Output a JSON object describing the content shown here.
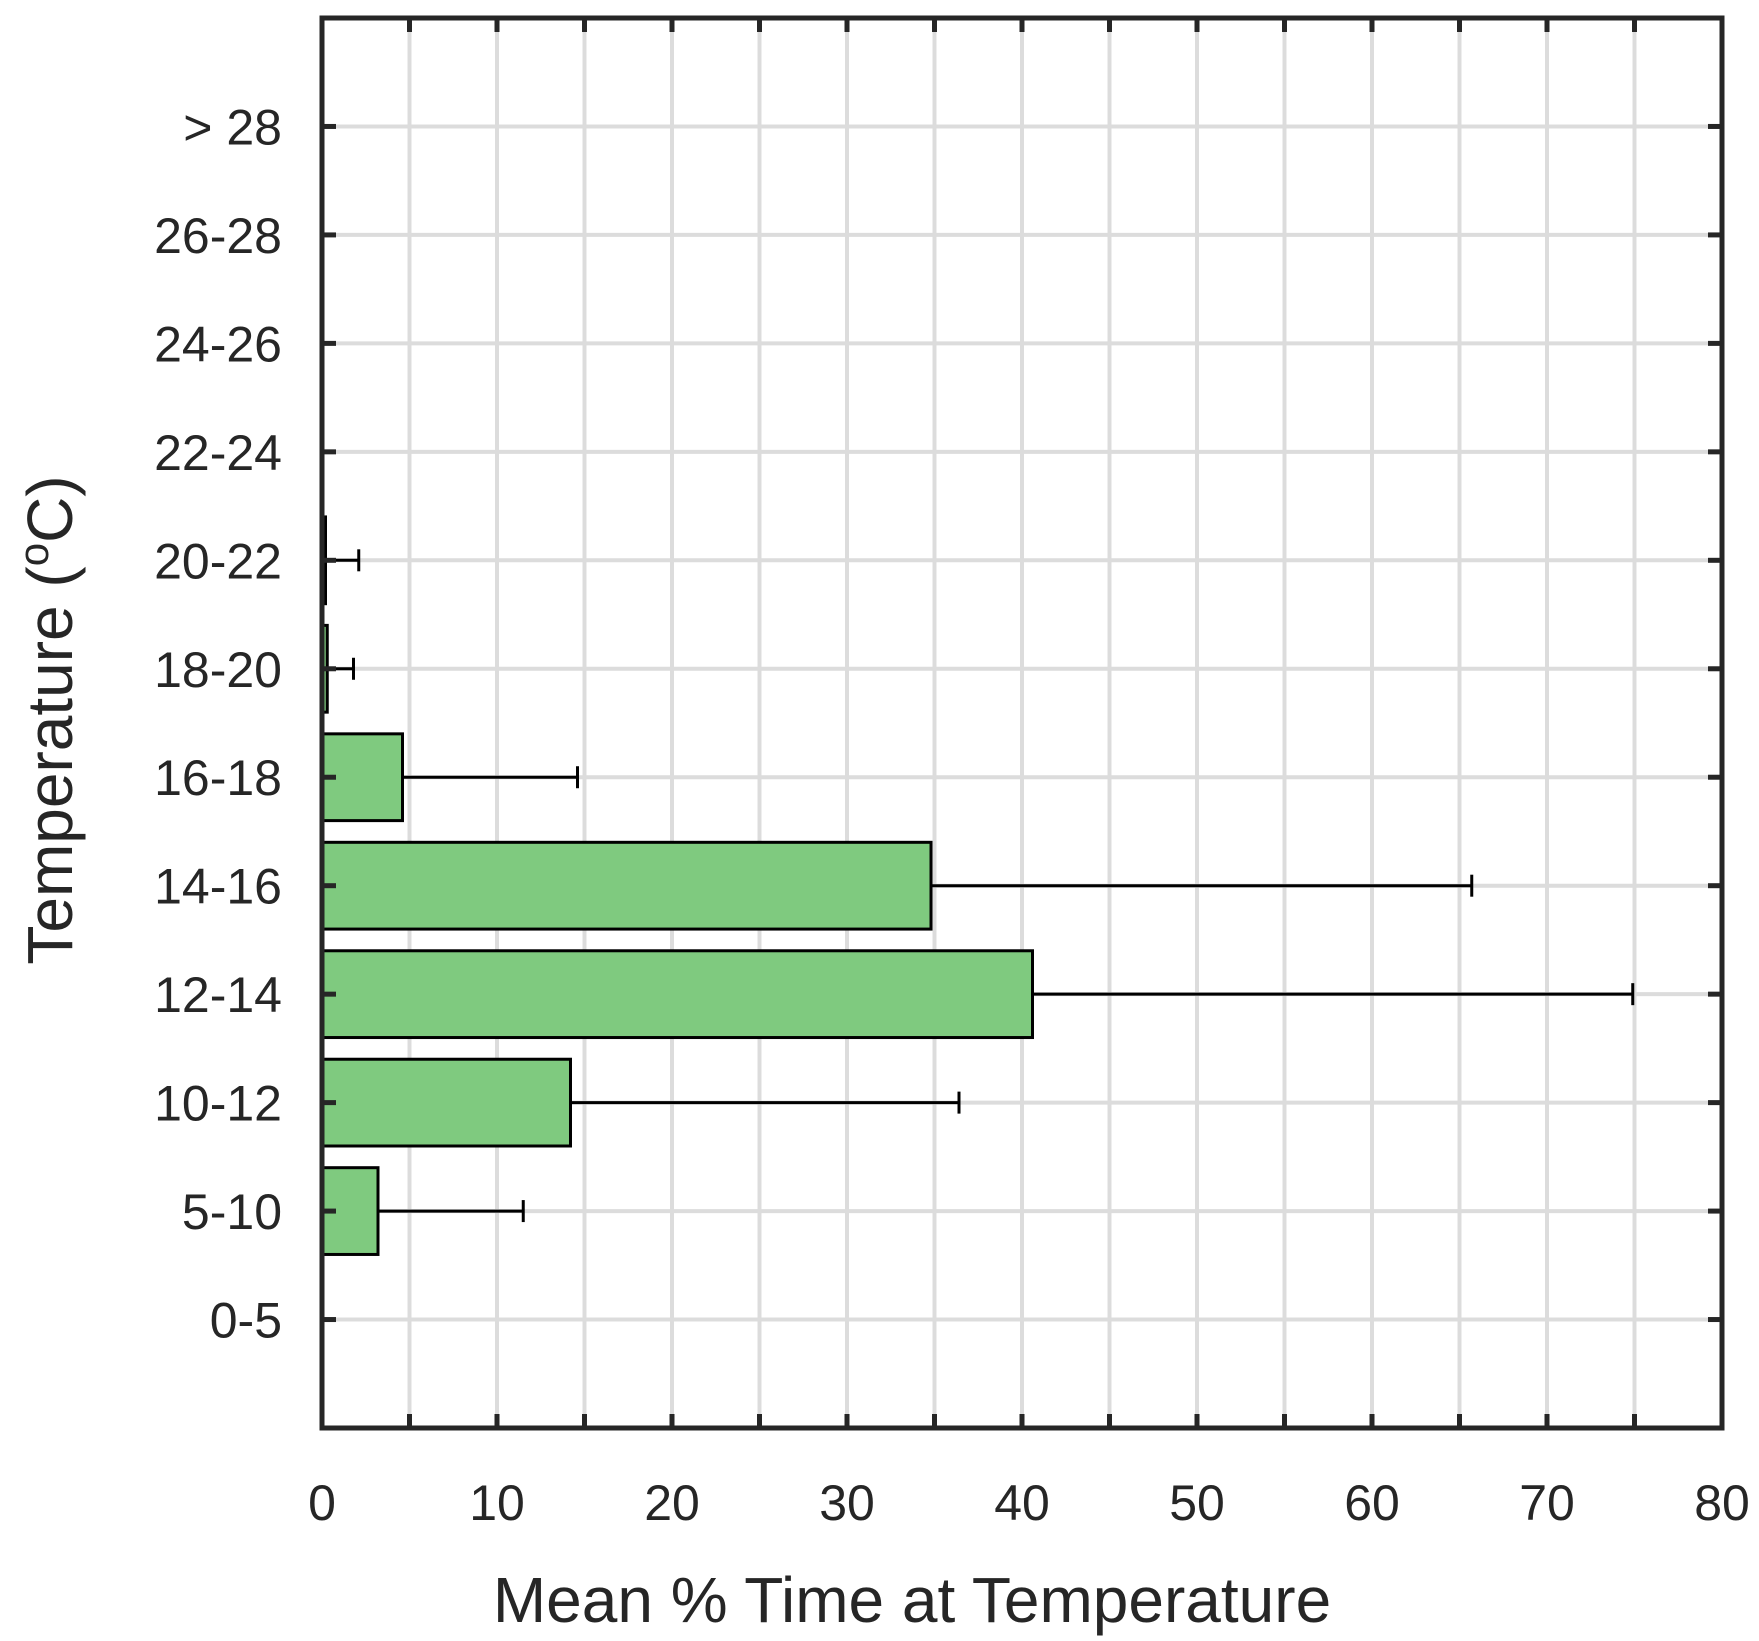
{
  "chart_data": {
    "type": "bar",
    "orientation": "horizontal",
    "title": "",
    "xlabel": "Mean % Time at Temperature",
    "ylabel_main": "Temperature (",
    "ylabel_sup": "o",
    "ylabel_end": "C)",
    "xlim": [
      0,
      80
    ],
    "xticks": [
      0,
      10,
      20,
      30,
      40,
      50,
      60,
      70,
      80
    ],
    "xgrid_step": 5,
    "grid": true,
    "categories": [
      "0-5",
      "5-10",
      "10-12",
      "12-14",
      "14-16",
      "16-18",
      "18-20",
      "20-22",
      "22-24",
      "24-26",
      "26-28",
      "> 28"
    ],
    "series": [
      {
        "values": [
          0,
          3.2,
          14.2,
          40.6,
          34.8,
          4.6,
          0.3,
          0.2,
          0,
          0,
          0,
          0
        ],
        "errors": [
          0,
          8.3,
          22.2,
          34.3,
          30.9,
          10.0,
          1.5,
          1.9,
          0,
          0,
          0,
          0
        ]
      }
    ],
    "colors": {
      "bar_fill": "#7fca7f",
      "bar_edge": "#000000",
      "axis": "#262626",
      "grid": "#dcdcdc"
    }
  }
}
